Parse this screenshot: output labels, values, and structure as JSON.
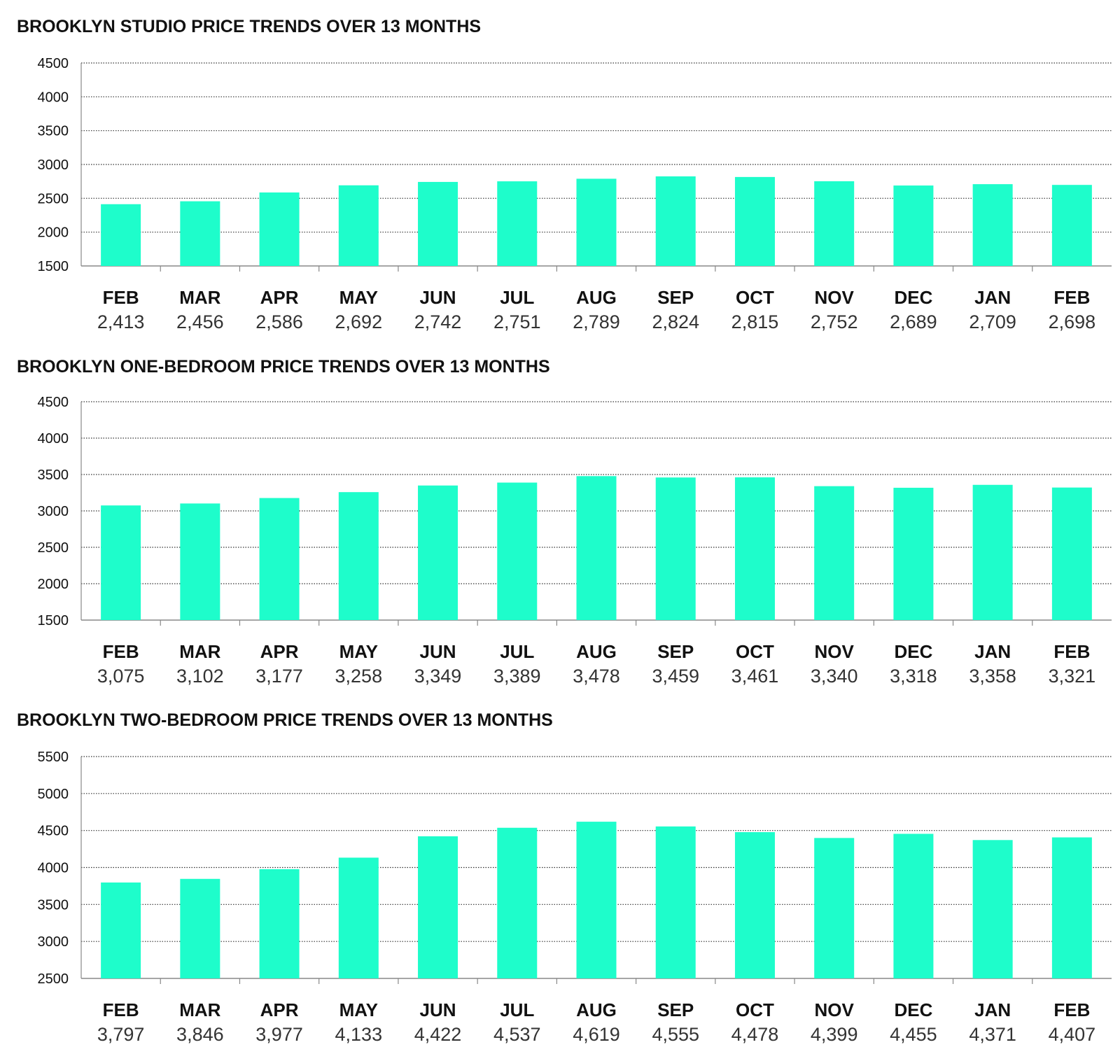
{
  "colors": {
    "bar": "#1EFDCB",
    "grid": "#333333",
    "axis": "#888888",
    "text": "#111111",
    "value_text": "#333333"
  },
  "chart_data": [
    {
      "type": "bar",
      "title": "BROOKLYN STUDIO PRICE TRENDS OVER 13 MONTHS",
      "xlabel": "",
      "ylabel": "",
      "ylim": [
        1500,
        4500
      ],
      "yticks": [
        "4500",
        "4000",
        "3500",
        "3000",
        "2500",
        "2000",
        "1500"
      ],
      "grid": true,
      "categories": [
        "FEB",
        "MAR",
        "APR",
        "MAY",
        "JUN",
        "JUL",
        "AUG",
        "SEP",
        "OCT",
        "NOV",
        "DEC",
        "JAN",
        "FEB"
      ],
      "values": [
        2413,
        2456,
        2586,
        2692,
        2742,
        2751,
        2789,
        2824,
        2815,
        2752,
        2689,
        2709,
        2698
      ],
      "value_labels": [
        "2,413",
        "2,456",
        "2,586",
        "2,692",
        "2,742",
        "2,751",
        "2,789",
        "2,824",
        "2,815",
        "2,752",
        "2,689",
        "2,709",
        "2,698"
      ]
    },
    {
      "type": "bar",
      "title": "BROOKLYN ONE-BEDROOM PRICE TRENDS OVER 13 MONTHS",
      "xlabel": "",
      "ylabel": "",
      "ylim": [
        1500,
        4500
      ],
      "yticks": [
        "4500",
        "4000",
        "3500",
        "3000",
        "2500",
        "2000",
        "1500"
      ],
      "grid": true,
      "categories": [
        "FEB",
        "MAR",
        "APR",
        "MAY",
        "JUN",
        "JUL",
        "AUG",
        "SEP",
        "OCT",
        "NOV",
        "DEC",
        "JAN",
        "FEB"
      ],
      "values": [
        3075,
        3102,
        3177,
        3258,
        3349,
        3389,
        3478,
        3459,
        3461,
        3340,
        3318,
        3358,
        3321
      ],
      "value_labels": [
        "3,075",
        "3,102",
        "3,177",
        "3,258",
        "3,349",
        "3,389",
        "3,478",
        "3,459",
        "3,461",
        "3,340",
        "3,318",
        "3,358",
        "3,321"
      ]
    },
    {
      "type": "bar",
      "title": "BROOKLYN TWO-BEDROOM PRICE TRENDS OVER 13 MONTHS",
      "xlabel": "",
      "ylabel": "",
      "ylim": [
        2500,
        5500
      ],
      "yticks": [
        "5500",
        "5000",
        "4500",
        "4000",
        "3500",
        "3000",
        "2500"
      ],
      "grid": true,
      "categories": [
        "FEB",
        "MAR",
        "APR",
        "MAY",
        "JUN",
        "JUL",
        "AUG",
        "SEP",
        "OCT",
        "NOV",
        "DEC",
        "JAN",
        "FEB"
      ],
      "values": [
        3797,
        3846,
        3977,
        4133,
        4422,
        4537,
        4619,
        4555,
        4478,
        4399,
        4455,
        4371,
        4407
      ],
      "value_labels": [
        "3,797",
        "3,846",
        "3,977",
        "4,133",
        "4,422",
        "4,537",
        "4,619",
        "4,555",
        "4,478",
        "4,399",
        "4,455",
        "4,371",
        "4,407"
      ]
    }
  ]
}
